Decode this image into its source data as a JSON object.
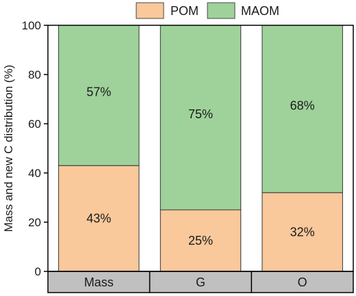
{
  "chart_data": {
    "type": "bar",
    "stacked": true,
    "categories": [
      "Mass",
      "G",
      "O"
    ],
    "series": [
      {
        "name": "POM",
        "values": [
          43,
          25,
          32
        ],
        "labels": [
          "43%",
          "25%",
          "32%"
        ],
        "color": "#f9c89b"
      },
      {
        "name": "MAOM",
        "values": [
          57,
          75,
          68
        ],
        "labels": [
          "57%",
          "75%",
          "68%"
        ],
        "color": "#9fd29a"
      }
    ],
    "ylabel": "Mass and new C distribution (%)",
    "ylim": [
      0,
      100
    ],
    "yticks": [
      0,
      20,
      40,
      60,
      80,
      100
    ],
    "legend_position": "top",
    "category_box_color": "#c0c0c0",
    "grid": false
  }
}
